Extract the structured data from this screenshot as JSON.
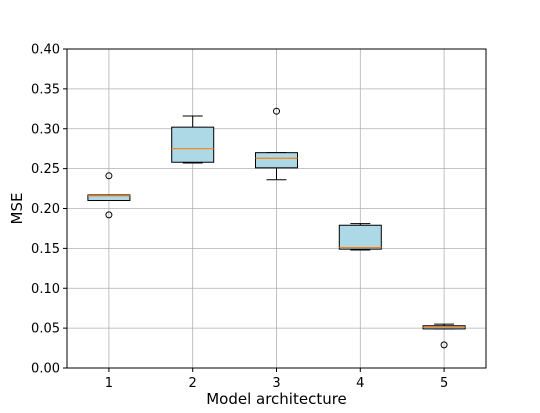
{
  "chart_data": {
    "type": "boxplot",
    "title": "",
    "xlabel": "Model architecture",
    "ylabel": "MSE",
    "categories": [
      "1",
      "2",
      "3",
      "4",
      "5"
    ],
    "ylim": [
      0.0,
      0.4
    ],
    "yticks": [
      "0.00",
      "0.05",
      "0.10",
      "0.15",
      "0.20",
      "0.25",
      "0.30",
      "0.35",
      "0.40"
    ],
    "grid": true,
    "box_color": "#add8e6",
    "median_color": "#ff7f0e",
    "boxes": [
      {
        "category": "1",
        "whisker_low": 0.21,
        "q1": 0.21,
        "median": 0.216,
        "q3": 0.217,
        "whisker_high": 0.217,
        "outliers": [
          0.241,
          0.192
        ]
      },
      {
        "category": "2",
        "whisker_low": 0.257,
        "q1": 0.258,
        "median": 0.275,
        "q3": 0.302,
        "whisker_high": 0.316,
        "outliers": []
      },
      {
        "category": "3",
        "whisker_low": 0.236,
        "q1": 0.251,
        "median": 0.263,
        "q3": 0.27,
        "whisker_high": 0.27,
        "outliers": [
          0.322
        ]
      },
      {
        "category": "4",
        "whisker_low": 0.148,
        "q1": 0.149,
        "median": 0.151,
        "q3": 0.179,
        "whisker_high": 0.181,
        "outliers": []
      },
      {
        "category": "5",
        "whisker_low": 0.049,
        "q1": 0.049,
        "median": 0.051,
        "q3": 0.053,
        "whisker_high": 0.055,
        "outliers": [
          0.029
        ]
      }
    ]
  }
}
